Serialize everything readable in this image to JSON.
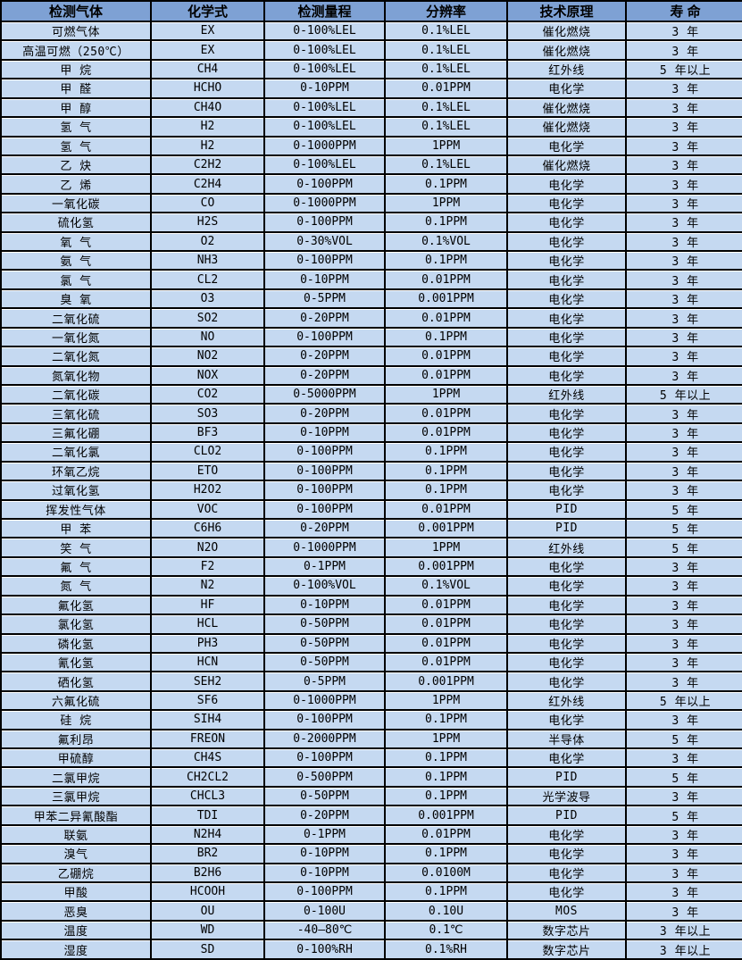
{
  "table": {
    "headers": [
      "检测气体",
      "化学式",
      "检测量程",
      "分辨率",
      "技术原理",
      "寿 命"
    ],
    "column_keys": [
      "gas-name",
      "chemical-formula",
      "detection-range",
      "resolution",
      "technology",
      "lifespan"
    ],
    "colors": {
      "header_bg": "#7ea1d4",
      "row_bg": "#c5d9f1",
      "border": "#000000",
      "row_gap": "#ffffff",
      "text": "#000000"
    },
    "rows": [
      [
        "可燃气体",
        "EX",
        "0-100%LEL",
        "0.1%LEL",
        "催化燃烧",
        "3 年"
      ],
      [
        "高温可燃（250℃）",
        "EX",
        "0-100%LEL",
        "0.1%LEL",
        "催化燃烧",
        "3 年"
      ],
      [
        "甲 烷",
        "CH4",
        "0-100%LEL",
        "0.1%LEL",
        "红外线",
        "5 年以上"
      ],
      [
        "甲 醛",
        "HCHO",
        "0-10PPM",
        "0.01PPM",
        "电化学",
        "3 年"
      ],
      [
        "甲 醇",
        "CH4O",
        "0-100%LEL",
        "0.1%LEL",
        "催化燃烧",
        "3 年"
      ],
      [
        "氢 气",
        "H2",
        "0-100%LEL",
        "0.1%LEL",
        "催化燃烧",
        "3 年"
      ],
      [
        "氢 气",
        "H2",
        "0-1000PPM",
        "1PPM",
        "电化学",
        "3 年"
      ],
      [
        "乙 炔",
        "C2H2",
        "0-100%LEL",
        "0.1%LEL",
        "催化燃烧",
        "3 年"
      ],
      [
        "乙 烯",
        "C2H4",
        "0-100PPM",
        "0.1PPM",
        "电化学",
        "3 年"
      ],
      [
        "一氧化碳",
        "CO",
        "0-1000PPM",
        "1PPM",
        "电化学",
        "3 年"
      ],
      [
        "硫化氢",
        "H2S",
        "0-100PPM",
        "0.1PPM",
        "电化学",
        "3 年"
      ],
      [
        "氧 气",
        "O2",
        "0-30%VOL",
        "0.1%VOL",
        "电化学",
        "3 年"
      ],
      [
        "氨 气",
        "NH3",
        "0-100PPM",
        "0.1PPM",
        "电化学",
        "3 年"
      ],
      [
        "氯 气",
        "CL2",
        "0-10PPM",
        "0.01PPM",
        "电化学",
        "3 年"
      ],
      [
        "臭 氧",
        "O3",
        "0-5PPM",
        "0.001PPM",
        "电化学",
        "3 年"
      ],
      [
        "二氧化硫",
        "SO2",
        "0-20PPM",
        "0.01PPM",
        "电化学",
        "3 年"
      ],
      [
        "一氧化氮",
        "NO",
        "0-100PPM",
        "0.1PPM",
        "电化学",
        "3 年"
      ],
      [
        "二氧化氮",
        "NO2",
        "0-20PPM",
        "0.01PPM",
        "电化学",
        "3 年"
      ],
      [
        "氮氧化物",
        "NOX",
        "0-20PPM",
        "0.01PPM",
        "电化学",
        "3 年"
      ],
      [
        "二氧化碳",
        "CO2",
        "0-5000PPM",
        "1PPM",
        "红外线",
        "5 年以上"
      ],
      [
        "三氧化硫",
        "SO3",
        "0-20PPM",
        "0.01PPM",
        "电化学",
        "3 年"
      ],
      [
        "三氟化硼",
        "BF3",
        "0-10PPM",
        "0.01PPM",
        "电化学",
        "3 年"
      ],
      [
        "二氧化氯",
        "CLO2",
        "0-100PPM",
        "0.1PPM",
        "电化学",
        "3 年"
      ],
      [
        "环氧乙烷",
        "ETO",
        "0-100PPM",
        "0.1PPM",
        "电化学",
        "3 年"
      ],
      [
        "过氧化氢",
        "H2O2",
        "0-100PPM",
        "0.1PPM",
        "电化学",
        "3 年"
      ],
      [
        "挥发性气体",
        "VOC",
        "0-100PPM",
        "0.01PPM",
        "PID",
        "5 年"
      ],
      [
        "甲 苯",
        "C6H6",
        "0-20PPM",
        "0.001PPM",
        "PID",
        "5 年"
      ],
      [
        "笑 气",
        "N2O",
        "0-1000PPM",
        "1PPM",
        "红外线",
        "5 年"
      ],
      [
        "氟 气",
        "F2",
        "0-1PPM",
        "0.001PPM",
        "电化学",
        "3 年"
      ],
      [
        "氮 气",
        "N2",
        "0-100%VOL",
        "0.1%VOL",
        "电化学",
        "3 年"
      ],
      [
        "氟化氢",
        "HF",
        "0-10PPM",
        "0.01PPM",
        "电化学",
        "3 年"
      ],
      [
        "氯化氢",
        "HCL",
        "0-50PPM",
        "0.01PPM",
        "电化学",
        "3 年"
      ],
      [
        "磷化氢",
        "PH3",
        "0-50PPM",
        "0.01PPM",
        "电化学",
        "3 年"
      ],
      [
        "氰化氢",
        "HCN",
        "0-50PPM",
        "0.01PPM",
        "电化学",
        "3 年"
      ],
      [
        "硒化氢",
        "SEH2",
        "0-5PPM",
        "0.001PPM",
        "电化学",
        "3 年"
      ],
      [
        "六氟化硫",
        "SF6",
        "0-1000PPM",
        "1PPM",
        "红外线",
        "5 年以上"
      ],
      [
        "硅 烷",
        "SIH4",
        "0-100PPM",
        "0.1PPM",
        "电化学",
        "3 年"
      ],
      [
        "氟利昂",
        "FREON",
        "0-2000PPM",
        "1PPM",
        "半导体",
        "5 年"
      ],
      [
        "甲硫醇",
        "CH4S",
        "0-100PPM",
        "0.1PPM",
        "电化学",
        "3 年"
      ],
      [
        "二氯甲烷",
        "CH2CL2",
        "0-500PPM",
        "0.1PPM",
        "PID",
        "5 年"
      ],
      [
        "三氯甲烷",
        "CHCL3",
        "0-50PPM",
        "0.1PPM",
        "光学波导",
        "3 年"
      ],
      [
        "甲苯二异氰酸酯",
        "TDI",
        "0-20PPM",
        "0.001PPM",
        "PID",
        "5 年"
      ],
      [
        "联氨",
        "N2H4",
        "0-1PPM",
        "0.01PPM",
        "电化学",
        "3 年"
      ],
      [
        "溴气",
        "BR2",
        "0-10PPM",
        "0.1PPM",
        "电化学",
        "3 年"
      ],
      [
        "乙硼烷",
        "B2H6",
        "0-10PPM",
        "0.0100M",
        "电化学",
        "3 年"
      ],
      [
        "甲酸",
        "HCOOH",
        "0-100PPM",
        "0.1PPM",
        "电化学",
        "3 年"
      ],
      [
        "恶臭",
        "OU",
        "0-100U",
        "0.10U",
        "MOS",
        "3 年"
      ],
      [
        "温度",
        "WD",
        "-40—80℃",
        "0.1℃",
        "数字芯片",
        "3 年以上"
      ],
      [
        "湿度",
        "SD",
        "0-100%RH",
        "0.1%RH",
        "数字芯片",
        "3 年以上"
      ]
    ]
  }
}
